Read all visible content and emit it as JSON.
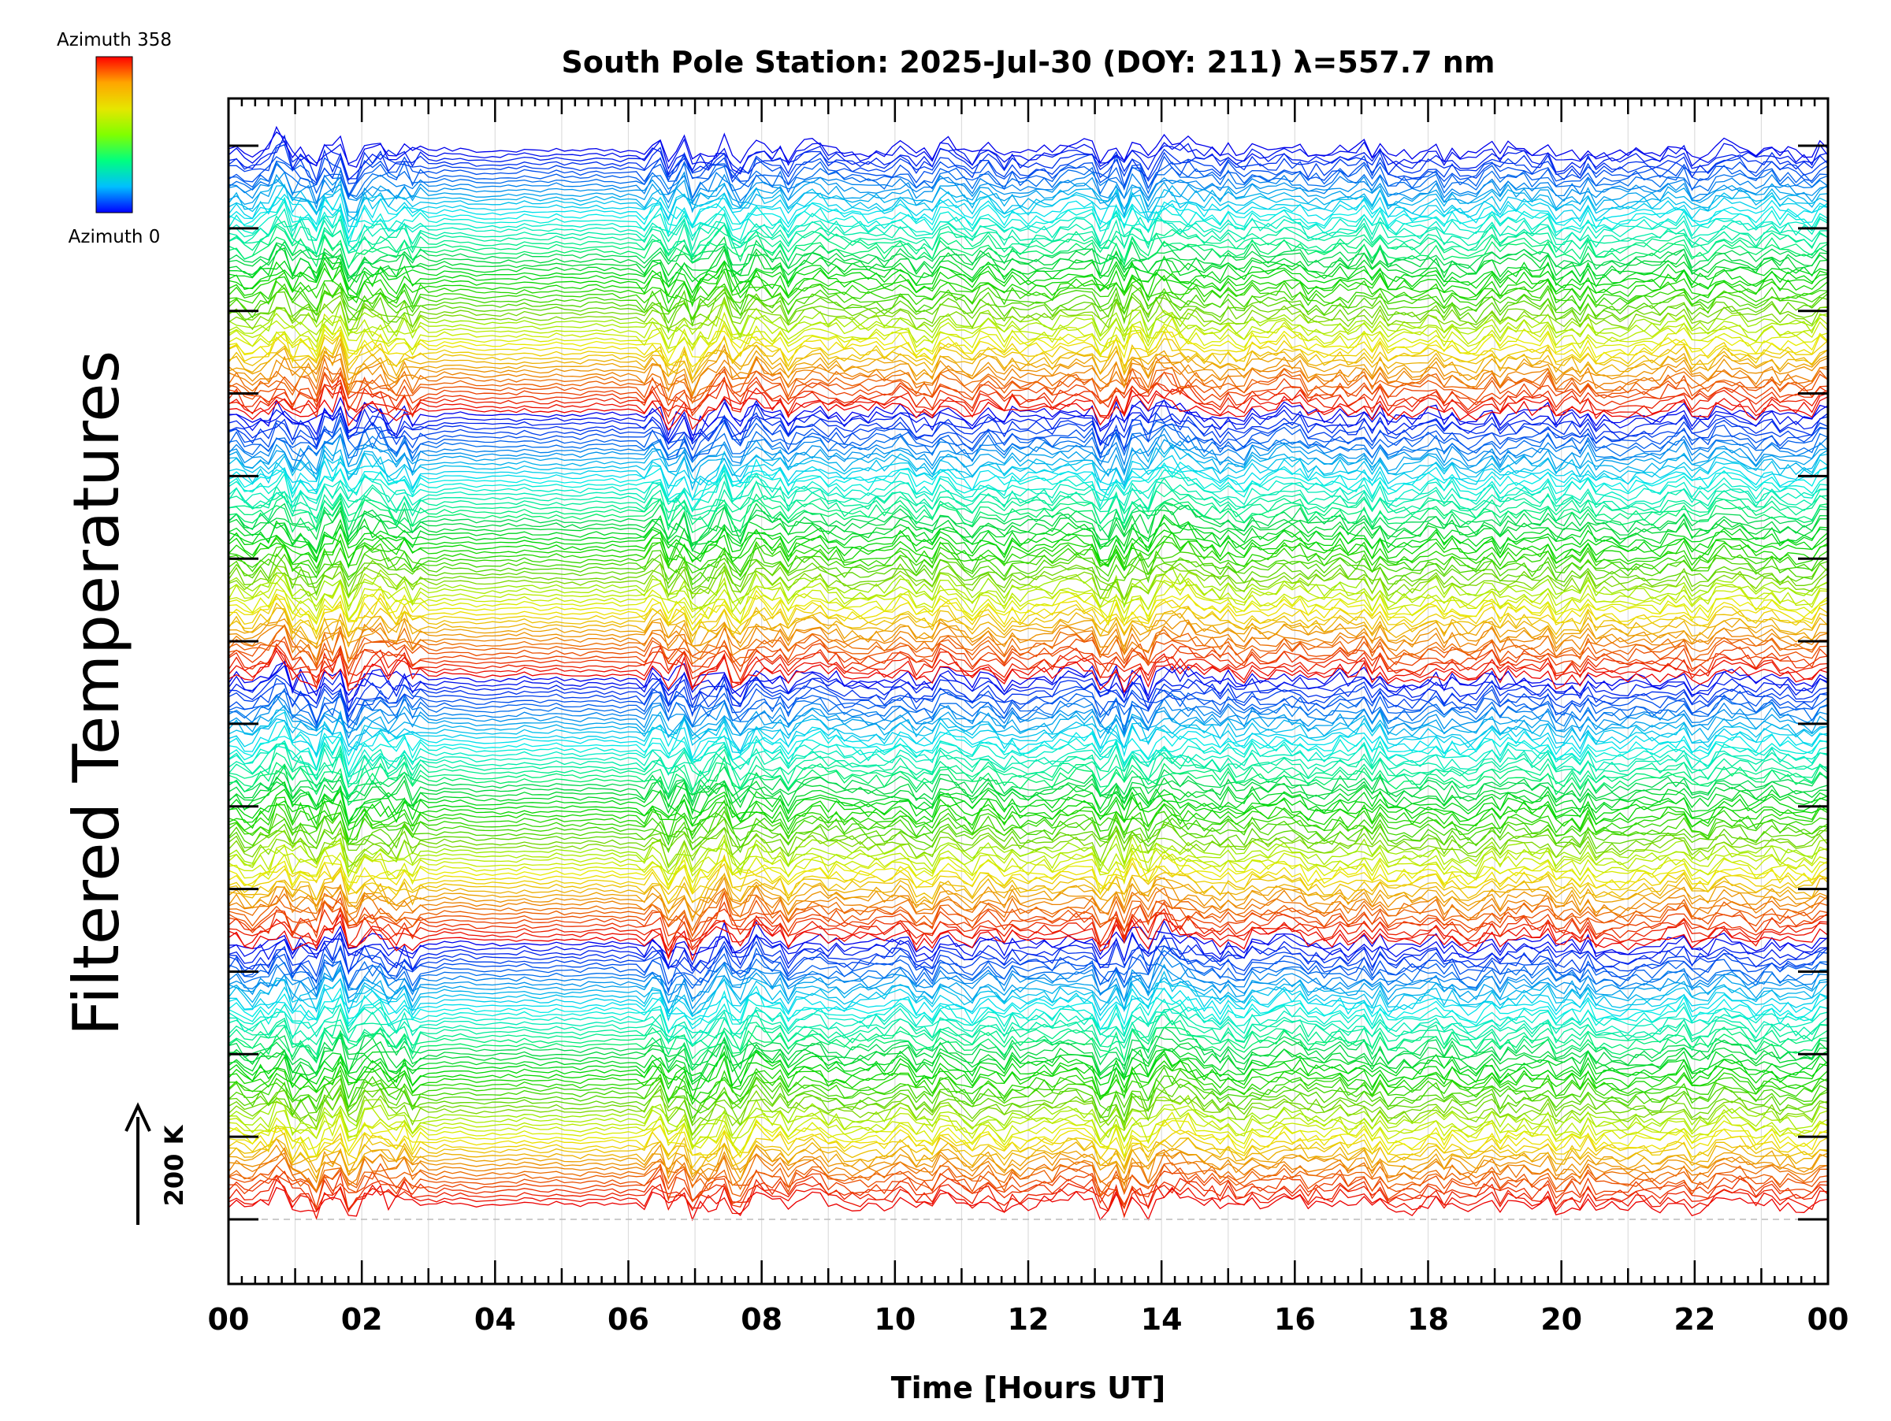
{
  "chart_data": {
    "type": "line",
    "title": "South Pole Station: 2025-Jul-30 (DOY: 211) λ=557.7 nm",
    "xlabel": "Time [Hours UT]",
    "ylabel": "Filtered Temperatures",
    "x_ticks": [
      "00",
      "02",
      "04",
      "06",
      "08",
      "10",
      "12",
      "14",
      "16",
      "18",
      "20",
      "22",
      "00"
    ],
    "xlim": [
      0,
      24
    ],
    "x_unit": "hours UT",
    "y_scale_bar_label": "200 K",
    "colorbar": {
      "top_label": "Azimuth 358",
      "bottom_label": "Azimuth 0",
      "colors": [
        "#ff0000",
        "#ffa500",
        "#e6e600",
        "#80ff00",
        "#00ff80",
        "#00bfff",
        "#0000ff"
      ]
    },
    "vertical_gridlines": true,
    "series_description": {
      "series_count": 240,
      "groups": 4,
      "series_per_group": 60,
      "azimuth_range": [
        0,
        358
      ],
      "quiet_interval_hours": [
        3.0,
        6.2
      ],
      "disturbed_intervals_hours": [
        [
          0.5,
          2.8
        ],
        [
          6.4,
          8.0
        ],
        [
          13.0,
          14.5
        ]
      ]
    }
  }
}
